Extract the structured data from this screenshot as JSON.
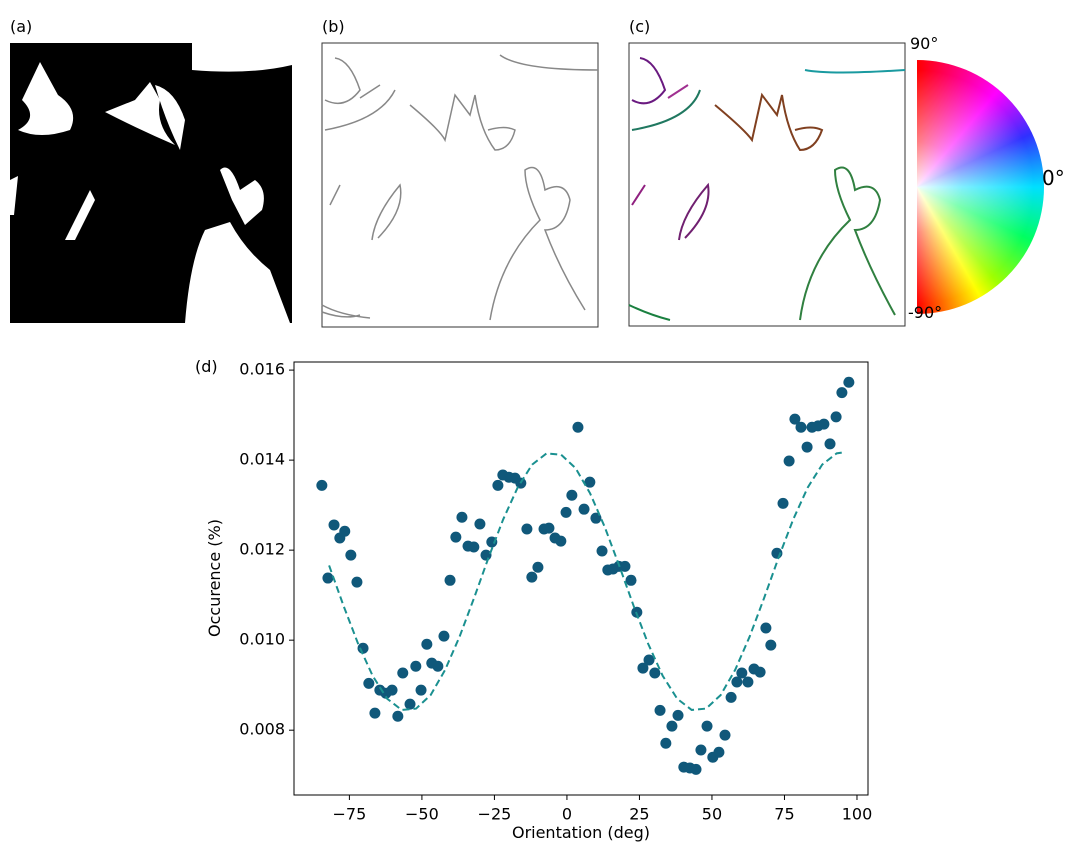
{
  "panels": {
    "a": "(a)",
    "b": "(b)",
    "c": "(c)"
  },
  "colorwheel": {
    "top": "90°",
    "middle": "0°",
    "bottom": "-90°"
  },
  "chart_data": {
    "type": "scatter",
    "label": "(d)",
    "x_label": "Orientation (deg)",
    "y_label": "Occurence (%)",
    "xlim": [
      -94.1,
      103.8
    ],
    "ylim": [
      0.00656,
      0.01618
    ],
    "xticks": [
      {
        "value": -75,
        "label": "−75"
      },
      {
        "value": -50,
        "label": "−50"
      },
      {
        "value": -25,
        "label": "−25"
      },
      0,
      25,
      50,
      75,
      100
    ],
    "yticks": [
      0.008,
      {
        "value": 0.01,
        "label": "0.010"
      },
      0.012,
      0.014,
      0.016
    ],
    "series": [
      {
        "type": "scatter",
        "color": "#10587a",
        "x": [
          -84.5,
          -82.4,
          -80.3,
          -78.3,
          -76.6,
          -74.5,
          -72.4,
          -70.3,
          -68.3,
          -66.2,
          -64.5,
          -62.4,
          -60.3,
          -58.3,
          -56.6,
          -54.1,
          -52.1,
          -50.3,
          -48.3,
          -46.6,
          -44.5,
          -42.4,
          -40.3,
          -38.3,
          -36.2,
          -34.1,
          -32.1,
          -30.0,
          -27.9,
          -25.9,
          -23.8,
          -22.1,
          -20.0,
          -17.9,
          -15.9,
          -13.8,
          -12.1,
          -10.0,
          -7.9,
          -6.2,
          -4.1,
          -2.1,
          -0.3,
          1.7,
          3.8,
          5.9,
          7.9,
          10.0,
          12.1,
          14.1,
          15.9,
          17.9,
          20.0,
          22.1,
          24.1,
          26.2,
          28.3,
          30.3,
          32.1,
          34.1,
          36.2,
          38.3,
          40.3,
          42.4,
          44.5,
          46.2,
          48.3,
          50.3,
          52.4,
          54.5,
          56.6,
          58.6,
          60.3,
          62.4,
          64.5,
          66.6,
          68.6,
          70.3,
          72.4,
          74.5,
          76.6,
          78.6,
          80.7,
          82.8,
          84.5,
          86.6,
          88.6,
          90.7,
          92.8,
          94.8,
          97.2
        ],
        "values": [
          0.01344,
          0.01138,
          0.01256,
          0.01227,
          0.01242,
          0.01189,
          0.01129,
          0.00982,
          0.00904,
          0.00838,
          0.00889,
          0.00882,
          0.00889,
          0.00831,
          0.00927,
          0.00858,
          0.00942,
          0.00889,
          0.00991,
          0.00949,
          0.00942,
          0.01009,
          0.01133,
          0.01229,
          0.01273,
          0.01209,
          0.01207,
          0.01258,
          0.01189,
          0.01218,
          0.01344,
          0.01367,
          0.01362,
          0.0136,
          0.01349,
          0.01247,
          0.0114,
          0.01162,
          0.01247,
          0.01249,
          0.01227,
          0.0122,
          0.01284,
          0.01322,
          0.01473,
          0.01291,
          0.01351,
          0.01271,
          0.01198,
          0.01156,
          0.01158,
          0.01164,
          0.01164,
          0.01133,
          0.01062,
          0.00938,
          0.00956,
          0.00927,
          0.00844,
          0.00771,
          0.00809,
          0.00833,
          0.00718,
          0.00716,
          0.00713,
          0.00756,
          0.00809,
          0.0074,
          0.00751,
          0.00789,
          0.00873,
          0.00907,
          0.00927,
          0.00907,
          0.00936,
          0.00929,
          0.01027,
          0.00989,
          0.01193,
          0.01304,
          0.01398,
          0.01491,
          0.01473,
          0.01429,
          0.01473,
          0.01476,
          0.0148,
          0.01436,
          0.01496,
          0.0155,
          0.01573
        ]
      },
      {
        "type": "line",
        "color": "#1a9090",
        "dashed": true,
        "x": [
          -82,
          -77,
          -72,
          -67,
          -62,
          -57,
          -52,
          -47,
          -42,
          -37,
          -32,
          -27,
          -22,
          -17,
          -12,
          -7,
          -2,
          3,
          8,
          13,
          18,
          23,
          28,
          33,
          38,
          43,
          48,
          53,
          58,
          63,
          68,
          73,
          78,
          83,
          88,
          93,
          95
        ],
        "values": [
          0.01166,
          0.01076,
          0.00992,
          0.00921,
          0.0087,
          0.00845,
          0.00848,
          0.00878,
          0.00934,
          0.01008,
          0.01094,
          0.01184,
          0.01268,
          0.01339,
          0.0139,
          0.01415,
          0.01412,
          0.01382,
          0.01326,
          0.01252,
          0.01166,
          0.01076,
          0.00992,
          0.00921,
          0.0087,
          0.00845,
          0.00848,
          0.00878,
          0.00934,
          0.01008,
          0.01094,
          0.01184,
          0.01268,
          0.01339,
          0.0139,
          0.01415,
          0.01417
        ]
      }
    ]
  }
}
